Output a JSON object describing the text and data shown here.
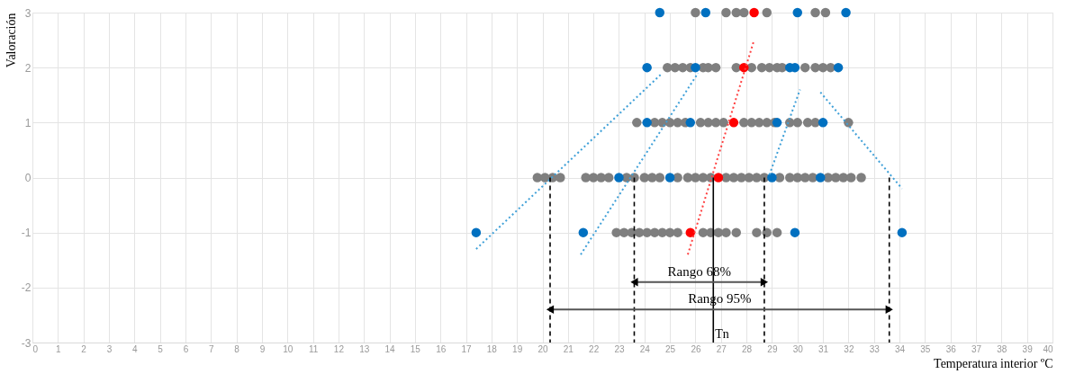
{
  "chart_data": {
    "type": "scatter",
    "xlabel": "Temperatura interior ºC",
    "ylabel": "Valoración",
    "xlim": [
      0,
      40
    ],
    "xticks": [
      0,
      1,
      2,
      3,
      4,
      5,
      6,
      7,
      8,
      9,
      10,
      11,
      12,
      13,
      14,
      15,
      16,
      17,
      18,
      19,
      20,
      21,
      22,
      23,
      24,
      25,
      26,
      27,
      28,
      29,
      30,
      31,
      32,
      33,
      34,
      35,
      36,
      37,
      38,
      39,
      40
    ],
    "ylim": [
      -3,
      3
    ],
    "yticks": [
      -3,
      -2,
      -1,
      0,
      1,
      2,
      3
    ],
    "grid": true,
    "series": [
      {
        "marker": "circle",
        "color": "#7f7f7f",
        "x": [
          26.0,
          27.2,
          27.6,
          27.9,
          28.8,
          30.7,
          31.1,
          24.9,
          25.2,
          25.5,
          25.8,
          26.3,
          26.5,
          26.8,
          27.6,
          28.2,
          28.6,
          28.9,
          29.2,
          29.4,
          30.3,
          30.7,
          31.0,
          31.3,
          23.7,
          24.4,
          24.7,
          25.0,
          25.3,
          25.6,
          26.2,
          26.5,
          26.8,
          27.1,
          27.9,
          28.2,
          28.5,
          28.8,
          29.1,
          29.7,
          30.0,
          30.4,
          30.7,
          32.0,
          19.8,
          20.1,
          20.4,
          20.7,
          21.7,
          22.0,
          22.3,
          22.6,
          23.3,
          23.6,
          24.0,
          24.3,
          24.6,
          25.3,
          25.7,
          26.0,
          26.3,
          26.6,
          27.2,
          27.5,
          27.8,
          28.1,
          28.4,
          28.7,
          29.3,
          29.7,
          30.0,
          30.3,
          30.6,
          31.2,
          31.5,
          31.8,
          32.1,
          32.5,
          22.9,
          23.2,
          23.5,
          23.8,
          24.1,
          24.4,
          24.7,
          25.0,
          25.3,
          26.3,
          26.6,
          26.9,
          27.2,
          27.6,
          28.4,
          28.8,
          29.2
        ],
        "values": [
          3,
          3,
          3,
          3,
          3,
          3,
          3,
          2,
          2,
          2,
          2,
          2,
          2,
          2,
          2,
          2,
          2,
          2,
          2,
          2,
          2,
          2,
          2,
          2,
          1,
          1,
          1,
          1,
          1,
          1,
          1,
          1,
          1,
          1,
          1,
          1,
          1,
          1,
          1,
          1,
          1,
          1,
          1,
          1,
          0,
          0,
          0,
          0,
          0,
          0,
          0,
          0,
          0,
          0,
          0,
          0,
          0,
          0,
          0,
          0,
          0,
          0,
          0,
          0,
          0,
          0,
          0,
          0,
          0,
          0,
          0,
          0,
          0,
          0,
          0,
          0,
          0,
          0,
          -1,
          -1,
          -1,
          -1,
          -1,
          -1,
          -1,
          -1,
          -1,
          -1,
          -1,
          -1,
          -1,
          -1,
          -1,
          -1,
          -1
        ]
      },
      {
        "marker": "circle",
        "color": "#0070c0",
        "x": [
          24.6,
          26.4,
          30.0,
          31.9,
          24.1,
          26.0,
          29.7,
          29.9,
          31.6,
          24.1,
          25.8,
          29.2,
          31.0,
          23.0,
          25.0,
          29.0,
          30.9,
          17.4,
          21.6,
          29.9,
          34.1
        ],
        "values": [
          3,
          3,
          3,
          3,
          2,
          2,
          2,
          2,
          2,
          1,
          1,
          1,
          1,
          0,
          0,
          0,
          0,
          -1,
          -1,
          -1,
          -1
        ]
      },
      {
        "marker": "circle",
        "color": "#ff0000",
        "x": [
          28.3,
          27.9,
          27.5,
          26.9,
          25.8
        ],
        "values": [
          3,
          2,
          1,
          0,
          -1
        ]
      },
      {
        "type": "line",
        "color": "#3fa0d8",
        "line_style": "dotted",
        "x": [
          17.4,
          24.7
        ],
        "values": [
          -1.3,
          1.9
        ]
      },
      {
        "type": "line",
        "color": "#3fa0d8",
        "line_style": "dotted",
        "x": [
          21.5,
          26.1
        ],
        "values": [
          -1.4,
          1.9
        ]
      },
      {
        "type": "line",
        "color": "#ff4040",
        "line_style": "dotted",
        "x": [
          25.7,
          28.3
        ],
        "values": [
          -1.4,
          2.5
        ]
      },
      {
        "type": "line",
        "color": "#3fa0d8",
        "line_style": "dotted",
        "x": [
          28.9,
          30.1
        ],
        "values": [
          0.05,
          1.6
        ]
      },
      {
        "type": "line",
        "color": "#3fa0d8",
        "line_style": "dotted",
        "x": [
          30.9,
          34.1
        ],
        "values": [
          1.55,
          -0.2
        ]
      }
    ],
    "ref_lines": [
      {
        "axis": "x",
        "value": 20.3,
        "line_style": "dashed",
        "color": "#000000"
      },
      {
        "axis": "x",
        "value": 23.6,
        "line_style": "dashed",
        "color": "#000000"
      },
      {
        "axis": "x",
        "value": 28.7,
        "line_style": "dashed",
        "color": "#000000"
      },
      {
        "axis": "x",
        "value": 33.6,
        "line_style": "dashed",
        "color": "#000000"
      },
      {
        "axis": "x",
        "value": 26.7,
        "label": "Tn",
        "line_style": "solid",
        "color": "#000000"
      }
    ],
    "annotations": [
      "Rango 68%",
      "Rango 95%"
    ]
  }
}
